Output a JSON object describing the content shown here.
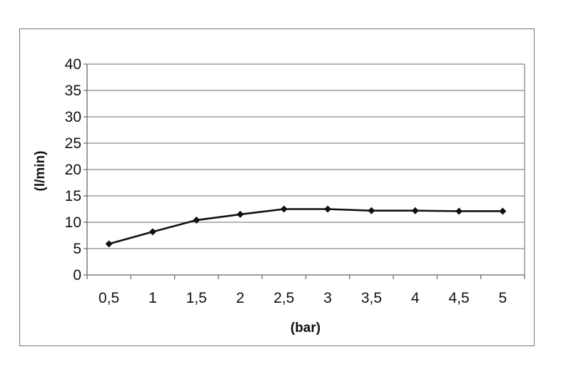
{
  "chart_data": {
    "type": "line",
    "title": "",
    "xlabel": "(bar)",
    "ylabel": "(l/min)",
    "categories": [
      "0,5",
      "1",
      "1,5",
      "2",
      "2,5",
      "3",
      "3,5",
      "4",
      "4,5",
      "5"
    ],
    "series": [
      {
        "values": [
          5.9,
          8.2,
          10.4,
          11.5,
          12.5,
          12.5,
          12.2,
          12.2,
          12.1,
          12.1
        ]
      }
    ],
    "ylim": [
      0,
      40
    ],
    "yticks": [
      0,
      5,
      10,
      15,
      20,
      25,
      30,
      35,
      40
    ],
    "grid": true,
    "legend": "none",
    "colors": {
      "line": "#111111",
      "grid": "#888888"
    }
  }
}
